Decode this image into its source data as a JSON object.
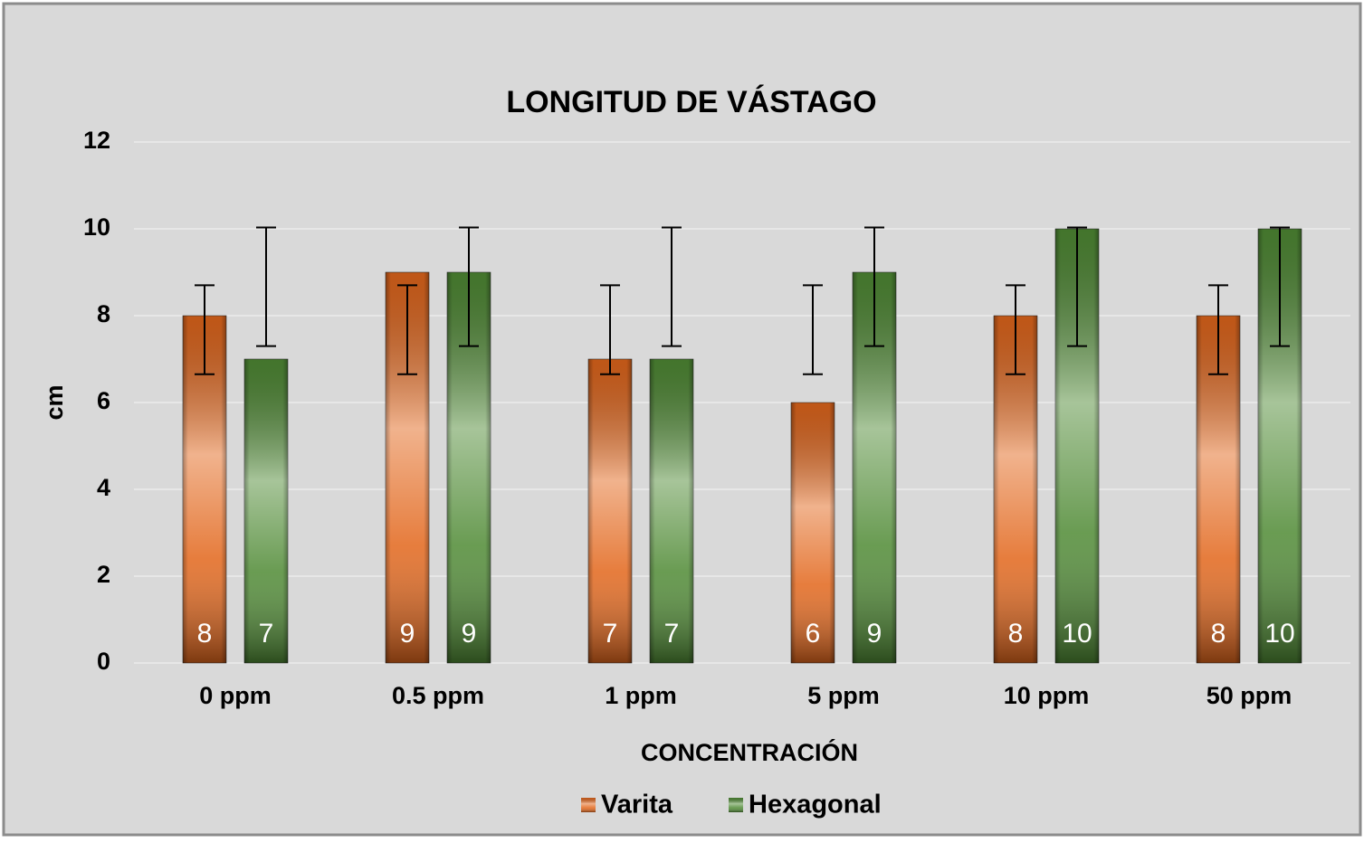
{
  "chart_data": {
    "type": "bar",
    "title": "LONGITUD DE VÁSTAGO",
    "x_label": "CONCENTRACIÓN",
    "y_label": "cm",
    "categories": [
      "0 ppm",
      "0.5 ppm",
      "1 ppm",
      "5 ppm",
      "10 ppm",
      "50 ppm"
    ],
    "series": [
      {
        "name": "Varita",
        "color": "#e2661b",
        "values": [
          8,
          9,
          7,
          6,
          8,
          8
        ],
        "error_low": [
          6.65,
          6.65,
          6.65,
          6.65,
          6.65,
          6.65
        ],
        "error_high": [
          8.7,
          8.7,
          8.7,
          8.7,
          8.7,
          8.7
        ]
      },
      {
        "name": "Hexagonal",
        "color": "#4f8a34",
        "values": [
          7,
          9,
          7,
          9,
          10,
          10
        ],
        "error_low": [
          7.3,
          7.3,
          7.3,
          7.3,
          7.3,
          7.3
        ],
        "error_high": [
          10.03,
          10.03,
          10.03,
          10.03,
          10.03,
          10.03
        ]
      }
    ],
    "ylim": [
      0,
      12
    ],
    "yticks": [
      0,
      2,
      4,
      6,
      8,
      10,
      12
    ],
    "grid": true,
    "legend": "bottom"
  }
}
